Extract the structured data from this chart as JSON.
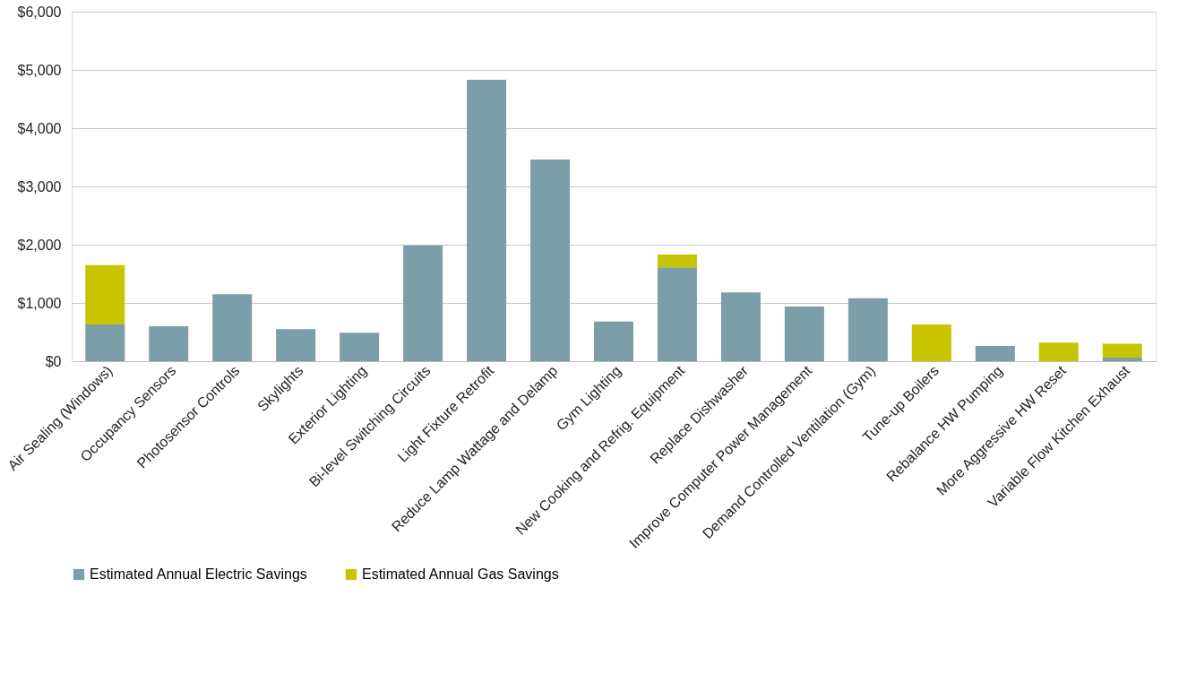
{
  "chart_data": {
    "type": "bar",
    "stacked": true,
    "categories": [
      "Air Sealing (Windows)",
      "Occupancy Sensors",
      "Photosensor Controls",
      "Skylights",
      "Exterior Lighting",
      "Bi-level Switching Circuits",
      "Light Fixture Retrofit",
      "Reduce Lamp Wattage and Delamp",
      "Gym Lighting",
      "New Cooking and Refrig. Equipment",
      "Replace Dishwasher",
      "Improve Computer Power Management",
      "Demand Controlled Ventilation (Gym)",
      "Tune-up Boilers",
      "Rebalance HW Pumping",
      "More Aggressive HW Reset",
      "Variable Flow Kitchen Exhaust"
    ],
    "series": [
      {
        "name": "Estimated Annual Electric Savings",
        "color": "#7b9ea8",
        "values": [
          630,
          600,
          1150,
          550,
          490,
          1990,
          4830,
          3460,
          680,
          1610,
          1180,
          940,
          1080,
          null,
          260,
          null,
          60
        ]
      },
      {
        "name": "Estimated Annual Gas Savings",
        "color": "#c8c400",
        "values": [
          1020,
          null,
          null,
          null,
          null,
          null,
          null,
          null,
          null,
          220,
          null,
          null,
          null,
          630,
          null,
          320,
          240
        ]
      }
    ],
    "ylim": [
      0,
      6000
    ],
    "yticks": [
      {
        "value": 0,
        "label": "$0"
      },
      {
        "value": 1000,
        "label": "$1,000"
      },
      {
        "value": 2000,
        "label": "$2,000"
      },
      {
        "value": 3000,
        "label": "$3,000"
      },
      {
        "value": 4000,
        "label": "$4,000"
      },
      {
        "value": 5000,
        "label": "$5,000"
      },
      {
        "value": 6000,
        "label": "$6,000"
      }
    ],
    "grid": "y",
    "legend": "bottom"
  }
}
